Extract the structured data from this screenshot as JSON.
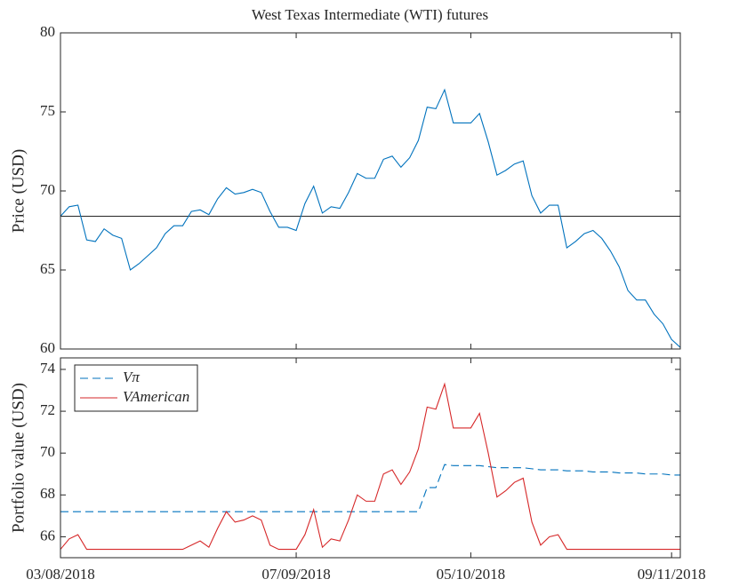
{
  "chart_data": [
    {
      "type": "line",
      "title": "West Texas Intermediate (WTI) futures",
      "y_label": "Price (USD)",
      "xlim": [
        0,
        71
      ],
      "ylim": [
        60,
        80
      ],
      "yticks": [
        60,
        65,
        70,
        75,
        80
      ],
      "hline": 68.4,
      "hline_color": "#262626",
      "series": [
        {
          "name": "Price",
          "color": "#0072bd",
          "dash": false,
          "values": [
            68.4,
            69.0,
            69.1,
            66.9,
            66.8,
            67.6,
            67.2,
            67.0,
            65.0,
            65.4,
            65.9,
            66.4,
            67.3,
            67.8,
            67.8,
            68.7,
            68.8,
            68.5,
            69.5,
            70.2,
            69.8,
            69.9,
            70.1,
            69.9,
            68.7,
            67.7,
            67.7,
            67.5,
            69.2,
            70.3,
            68.6,
            69.0,
            68.9,
            69.9,
            71.1,
            70.8,
            70.8,
            72.0,
            72.2,
            71.5,
            72.1,
            73.2,
            75.3,
            75.2,
            76.4,
            74.3,
            74.3,
            74.3,
            74.9,
            73.1,
            71.0,
            71.3,
            71.7,
            71.9,
            69.7,
            68.6,
            69.1,
            69.1,
            66.4,
            66.8,
            67.3,
            67.5,
            67.0,
            66.2,
            65.2,
            63.7,
            63.1,
            63.1,
            62.2,
            61.6,
            60.6,
            60.1
          ]
        }
      ]
    },
    {
      "type": "line",
      "y_label": "Portfolio value (USD)",
      "xlim": [
        0,
        71
      ],
      "ylim": [
        65,
        74.55
      ],
      "yticks": [
        66,
        68,
        70,
        72,
        74
      ],
      "xticks": [
        {
          "value": 0,
          "label": "03/08/2018"
        },
        {
          "value": 27,
          "label": "07/09/2018"
        },
        {
          "value": 47,
          "label": "05/10/2018"
        },
        {
          "value": 70,
          "label": "09/11/2018"
        }
      ],
      "legend": "upper left",
      "series": [
        {
          "name": "Vπ",
          "color": "#0072bd",
          "dash": true,
          "values": [
            67.2,
            67.2,
            67.2,
            67.2,
            67.2,
            67.2,
            67.2,
            67.2,
            67.2,
            67.2,
            67.2,
            67.2,
            67.2,
            67.2,
            67.2,
            67.2,
            67.2,
            67.2,
            67.2,
            67.2,
            67.2,
            67.2,
            67.2,
            67.2,
            67.2,
            67.2,
            67.2,
            67.2,
            67.2,
            67.2,
            67.2,
            67.2,
            67.2,
            67.2,
            67.2,
            67.2,
            67.2,
            67.2,
            67.2,
            67.2,
            67.2,
            67.2,
            68.35,
            68.35,
            69.45,
            69.4,
            69.4,
            69.4,
            69.4,
            69.35,
            69.3,
            69.3,
            69.3,
            69.3,
            69.25,
            69.2,
            69.2,
            69.2,
            69.15,
            69.15,
            69.15,
            69.1,
            69.1,
            69.1,
            69.05,
            69.05,
            69.05,
            69.0,
            69.0,
            69.0,
            68.95,
            68.95
          ]
        },
        {
          "name": "VAmerican",
          "color": "#d62728",
          "dash": false,
          "values": [
            65.4,
            65.9,
            66.1,
            65.4,
            65.4,
            65.4,
            65.4,
            65.4,
            65.4,
            65.4,
            65.4,
            65.4,
            65.4,
            65.4,
            65.4,
            65.6,
            65.8,
            65.5,
            66.4,
            67.2,
            66.7,
            66.8,
            67.0,
            66.8,
            65.6,
            65.4,
            65.4,
            65.4,
            66.1,
            67.3,
            65.5,
            65.9,
            65.8,
            66.8,
            68.0,
            67.7,
            67.7,
            69.0,
            69.2,
            68.5,
            69.1,
            70.2,
            72.2,
            72.1,
            73.3,
            71.2,
            71.2,
            71.2,
            71.9,
            70.0,
            67.9,
            68.2,
            68.6,
            68.8,
            66.7,
            65.6,
            66.0,
            66.1,
            65.4,
            65.4,
            65.4,
            65.4,
            65.4,
            65.4,
            65.4,
            65.4,
            65.4,
            65.4,
            65.4,
            65.4,
            65.4,
            65.4
          ]
        }
      ]
    }
  ]
}
